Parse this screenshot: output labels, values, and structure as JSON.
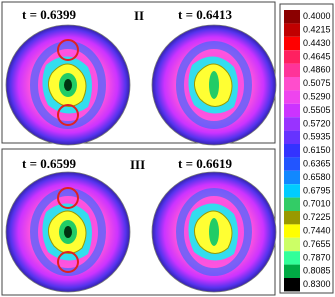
{
  "panels": [
    {
      "label": "II",
      "left_time": "t = 0.6399",
      "right_time": "t = 0.6413"
    },
    {
      "label": "III",
      "left_time": "t = 0.6599",
      "right_time": "t = 0.6619"
    }
  ],
  "colorbar": {
    "labels": [
      "0.4000",
      "0.4215",
      "0.4430",
      "0.4645",
      "0.4860",
      "0.5075",
      "0.5290",
      "0.5505",
      "0.5720",
      "0.5935",
      "0.6150",
      "0.6365",
      "0.6580",
      "0.6795",
      "0.7010",
      "0.7225",
      "0.7440",
      "0.7655",
      "0.7870",
      "0.8085",
      "0.8300"
    ]
  }
}
